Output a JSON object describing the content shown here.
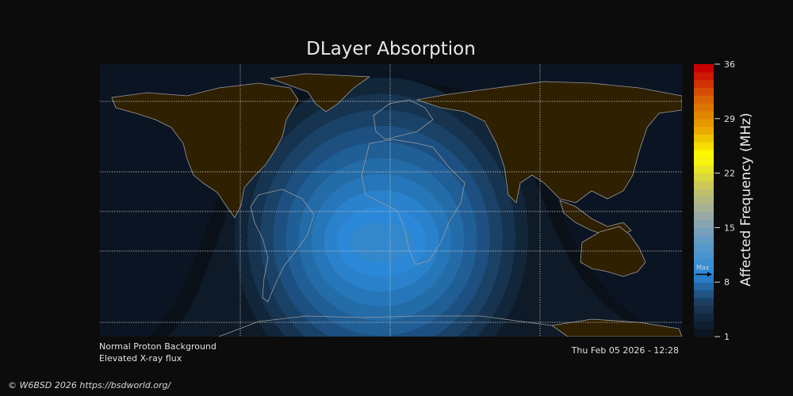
{
  "title": "DLayer Absorption",
  "status": {
    "line1": "Normal Proton Background",
    "line2": "Elevated X-ray flux",
    "timestamp": "Thu Feb 05 2026 - 12:28"
  },
  "copyright": "© W6BSD 2026 https://bsdworld.org/",
  "colorbar": {
    "label": "Affected Frequency (MHz)",
    "min": 1,
    "max": 36,
    "ticks": [
      "36",
      "29",
      "22",
      "15",
      "8",
      "1"
    ],
    "max_marker_label": "Max",
    "max_marker_value": 9,
    "color_stops": [
      "#0c1420",
      "#1a3b5c",
      "#2a88d8",
      "#5a9ac8",
      "#9aa8a8",
      "#c8c858",
      "#ffff00",
      "#e8a000",
      "#d86000",
      "#c80000"
    ]
  },
  "map": {
    "ocean_color": "#0b1422",
    "night_land_color": "#2e2000",
    "coastline_color": "#9a9a9a",
    "absorption_colors": [
      "#0e1a28",
      "#12263a",
      "#163350",
      "#1a4266",
      "#1d5080",
      "#205e96",
      "#236ca8",
      "#2677ba",
      "#2a82cc",
      "#2b88d8",
      "#3388cc"
    ]
  }
}
